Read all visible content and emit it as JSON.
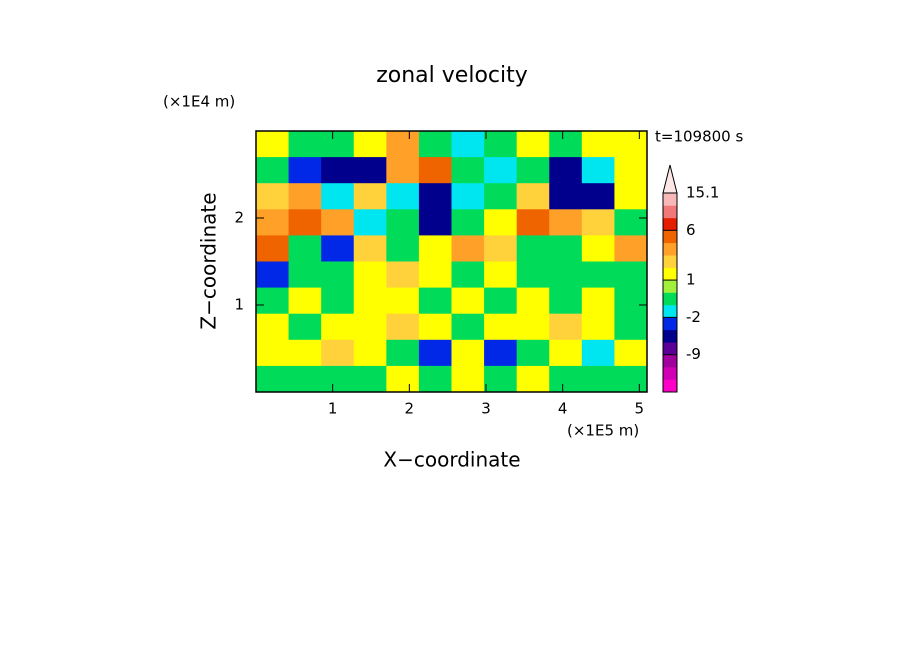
{
  "chart_data": {
    "type": "contour",
    "title": "zonal velocity",
    "x_label": "X−coordinate",
    "y_label": "Z−coordinate",
    "x_unit": "(×1E5 m)",
    "y_unit": "(×1E4 m)",
    "time_label": "t=109800 s",
    "xlim": [
      0,
      5.1
    ],
    "ylim": [
      0,
      3
    ],
    "xticks": [
      1,
      2,
      3,
      4,
      5
    ],
    "yticks": [
      1,
      2
    ],
    "x_edges": [
      0,
      0.425,
      0.85,
      1.275,
      1.7,
      2.125,
      2.55,
      2.975,
      3.4,
      3.825,
      4.25,
      4.675,
      5.1
    ],
    "y_edges": [
      3,
      2.7,
      2.4,
      2.1,
      1.8,
      1.5,
      1.2,
      0.9,
      0.6,
      0.3,
      0
    ],
    "values": [
      [
        1.5,
        -0.5,
        -0.5,
        1.5,
        3.5,
        -0.5,
        -1.5,
        -0.5,
        1.5,
        -0.5,
        1.5,
        1.5
      ],
      [
        -0.5,
        -2.5,
        -4,
        -4,
        3.5,
        5,
        -0.5,
        -1.5,
        -0.5,
        -4,
        -1.5,
        1.5
      ],
      [
        2.5,
        3.5,
        -1.5,
        2.5,
        -1.5,
        -4,
        -1.5,
        -0.5,
        2.5,
        -4,
        -4,
        1.5
      ],
      [
        3.5,
        5,
        3.5,
        -1.5,
        -0.5,
        -4,
        -0.5,
        1.5,
        5,
        3.5,
        2.5,
        -0.5
      ],
      [
        5,
        -0.5,
        -2.5,
        2.5,
        -0.5,
        1.5,
        3.5,
        2.5,
        -0.5,
        -0.5,
        1.5,
        3.5
      ],
      [
        -2.5,
        -0.5,
        -0.5,
        1.5,
        2.5,
        1.5,
        -0.5,
        1.5,
        -0.5,
        -0.5,
        -0.5,
        -0.5
      ],
      [
        -0.5,
        1.5,
        -0.5,
        1.5,
        1.5,
        -0.5,
        1.5,
        -0.5,
        1.5,
        -0.5,
        1.5,
        -0.5
      ],
      [
        1.5,
        -0.5,
        1.5,
        1.5,
        2.5,
        1.5,
        -0.5,
        1.5,
        1.5,
        2.5,
        1.5,
        -0.5
      ],
      [
        1.5,
        1.5,
        2.5,
        1.5,
        -0.5,
        -2.5,
        1.5,
        -2.5,
        -0.5,
        1.5,
        -1.5,
        1.5
      ],
      [
        -0.5,
        -0.5,
        -0.5,
        -0.5,
        1.5,
        -0.5,
        1.5,
        -0.5,
        1.5,
        -0.5,
        -0.5,
        -0.5
      ]
    ],
    "levels": [
      -20,
      -15,
      -12,
      -9,
      -6,
      -3,
      -2,
      -1,
      0,
      1,
      2,
      3,
      4,
      6,
      9,
      12,
      15.1
    ],
    "level_colors": [
      "#ff00c8",
      "#d200b4",
      "#a0009b",
      "#5a0096",
      "#00008c",
      "#0028e6",
      "#00e6f0",
      "#00dc5a",
      "#a0f03c",
      "#ffff00",
      "#ffd23c",
      "#ffa028",
      "#f06400",
      "#e61e00",
      "#f07878",
      "#f8b8b8"
    ],
    "colorbar_ticks": [
      15.1,
      6,
      1,
      -2,
      -9
    ]
  }
}
